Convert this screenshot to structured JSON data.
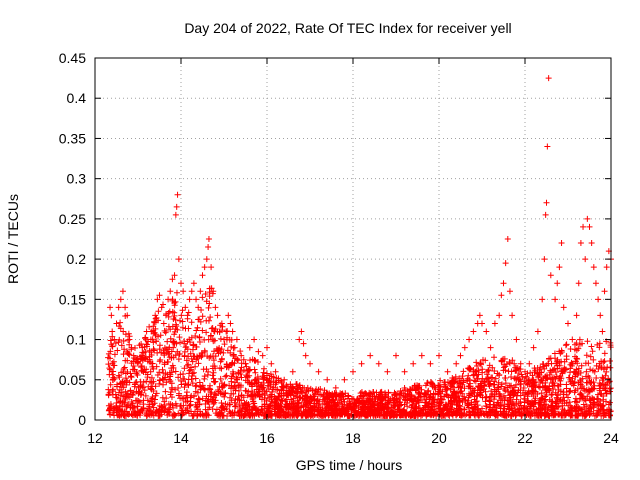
{
  "chart_data": {
    "type": "scatter",
    "title": "Day 204 of 2022, Rate Of TEC Index for receiver yell",
    "xlabel": "GPS time / hours",
    "ylabel": "ROTI / TECUs",
    "xlim": [
      12,
      24
    ],
    "ylim": [
      0,
      0.45
    ],
    "xticks": [
      12,
      14,
      16,
      18,
      20,
      22,
      24
    ],
    "yticks": [
      0,
      0.05,
      0.1,
      0.15,
      0.2,
      0.25,
      0.3,
      0.35,
      0.4,
      0.45
    ],
    "xtick_labels": [
      "12",
      "14",
      "16",
      "18",
      "20",
      "22",
      "24"
    ],
    "ytick_labels": [
      "0",
      "0.05",
      "0.1",
      "0.15",
      "0.2",
      "0.25",
      "0.3",
      "0.35",
      "0.4",
      "0.45"
    ],
    "grid": true,
    "marker": "+",
    "color": "#ff0000",
    "series": [
      {
        "name": "ROTI",
        "points": [
          [
            12.35,
            0.14
          ],
          [
            12.38,
            0.13
          ],
          [
            12.4,
            0.11
          ],
          [
            12.45,
            0.1
          ],
          [
            12.5,
            0.12
          ],
          [
            12.55,
            0.14
          ],
          [
            12.6,
            0.15
          ],
          [
            12.65,
            0.16
          ],
          [
            12.7,
            0.14
          ],
          [
            12.75,
            0.13
          ],
          [
            12.8,
            0.1
          ],
          [
            12.85,
            0.09
          ],
          [
            12.9,
            0.08
          ],
          [
            13.0,
            0.07
          ],
          [
            13.1,
            0.09
          ],
          [
            13.2,
            0.11
          ],
          [
            13.3,
            0.1
          ],
          [
            13.4,
            0.13
          ],
          [
            13.45,
            0.15
          ],
          [
            13.5,
            0.155
          ],
          [
            13.55,
            0.14
          ],
          [
            13.6,
            0.12
          ],
          [
            13.65,
            0.13
          ],
          [
            13.7,
            0.15
          ],
          [
            13.75,
            0.16
          ],
          [
            13.8,
            0.175
          ],
          [
            13.85,
            0.18
          ],
          [
            13.88,
            0.255
          ],
          [
            13.9,
            0.265
          ],
          [
            13.92,
            0.28
          ],
          [
            13.95,
            0.2
          ],
          [
            14.0,
            0.17
          ],
          [
            14.05,
            0.16
          ],
          [
            14.1,
            0.14
          ],
          [
            14.15,
            0.13
          ],
          [
            14.2,
            0.15
          ],
          [
            14.25,
            0.16
          ],
          [
            14.3,
            0.17
          ],
          [
            14.35,
            0.15
          ],
          [
            14.4,
            0.14
          ],
          [
            14.45,
            0.16
          ],
          [
            14.5,
            0.18
          ],
          [
            14.55,
            0.19
          ],
          [
            14.6,
            0.2
          ],
          [
            14.63,
            0.215
          ],
          [
            14.65,
            0.225
          ],
          [
            14.7,
            0.19
          ],
          [
            14.75,
            0.16
          ],
          [
            14.8,
            0.14
          ],
          [
            14.85,
            0.13
          ],
          [
            14.9,
            0.11
          ],
          [
            14.95,
            0.12
          ],
          [
            15.0,
            0.1
          ],
          [
            15.05,
            0.11
          ],
          [
            15.1,
            0.13
          ],
          [
            15.15,
            0.12
          ],
          [
            15.2,
            0.11
          ],
          [
            15.25,
            0.09
          ],
          [
            15.3,
            0.1
          ],
          [
            15.4,
            0.08
          ],
          [
            15.5,
            0.07
          ],
          [
            15.6,
            0.09
          ],
          [
            15.7,
            0.1
          ],
          [
            15.8,
            0.085
          ],
          [
            15.9,
            0.08
          ],
          [
            16.0,
            0.09
          ],
          [
            16.1,
            0.07
          ],
          [
            16.2,
            0.06
          ],
          [
            16.4,
            0.05
          ],
          [
            16.6,
            0.06
          ],
          [
            16.75,
            0.1
          ],
          [
            16.8,
            0.11
          ],
          [
            16.85,
            0.095
          ],
          [
            16.9,
            0.08
          ],
          [
            17.0,
            0.07
          ],
          [
            17.2,
            0.06
          ],
          [
            17.4,
            0.05
          ],
          [
            17.6,
            0.04
          ],
          [
            17.8,
            0.05
          ],
          [
            18.0,
            0.06
          ],
          [
            18.2,
            0.07
          ],
          [
            18.4,
            0.08
          ],
          [
            18.6,
            0.07
          ],
          [
            18.8,
            0.06
          ],
          [
            19.0,
            0.08
          ],
          [
            19.2,
            0.06
          ],
          [
            19.4,
            0.07
          ],
          [
            19.6,
            0.08
          ],
          [
            19.8,
            0.07
          ],
          [
            20.0,
            0.08
          ],
          [
            20.2,
            0.06
          ],
          [
            20.4,
            0.07
          ],
          [
            20.5,
            0.08
          ],
          [
            20.6,
            0.09
          ],
          [
            20.7,
            0.1
          ],
          [
            20.8,
            0.11
          ],
          [
            20.9,
            0.12
          ],
          [
            20.95,
            0.13
          ],
          [
            21.0,
            0.12
          ],
          [
            21.1,
            0.11
          ],
          [
            21.2,
            0.09
          ],
          [
            21.3,
            0.12
          ],
          [
            21.4,
            0.13
          ],
          [
            21.45,
            0.155
          ],
          [
            21.5,
            0.17
          ],
          [
            21.55,
            0.195
          ],
          [
            21.6,
            0.225
          ],
          [
            21.65,
            0.16
          ],
          [
            21.7,
            0.13
          ],
          [
            21.8,
            0.1
          ],
          [
            21.9,
            0.07
          ],
          [
            22.0,
            0.06
          ],
          [
            22.1,
            0.07
          ],
          [
            22.2,
            0.09
          ],
          [
            22.3,
            0.11
          ],
          [
            22.4,
            0.15
          ],
          [
            22.45,
            0.2
          ],
          [
            22.48,
            0.255
          ],
          [
            22.5,
            0.27
          ],
          [
            22.52,
            0.34
          ],
          [
            22.55,
            0.425
          ],
          [
            22.6,
            0.18
          ],
          [
            22.7,
            0.15
          ],
          [
            22.75,
            0.17
          ],
          [
            22.8,
            0.19
          ],
          [
            22.85,
            0.22
          ],
          [
            22.9,
            0.14
          ],
          [
            23.0,
            0.12
          ],
          [
            23.1,
            0.1
          ],
          [
            23.2,
            0.13
          ],
          [
            23.25,
            0.17
          ],
          [
            23.3,
            0.22
          ],
          [
            23.35,
            0.24
          ],
          [
            23.4,
            0.2
          ],
          [
            23.45,
            0.25
          ],
          [
            23.5,
            0.24
          ],
          [
            23.55,
            0.22
          ],
          [
            23.6,
            0.19
          ],
          [
            23.65,
            0.17
          ],
          [
            23.7,
            0.15
          ],
          [
            23.75,
            0.13
          ],
          [
            23.8,
            0.11
          ],
          [
            23.85,
            0.16
          ],
          [
            23.9,
            0.19
          ],
          [
            23.95,
            0.21
          ],
          [
            24.0,
            0.2
          ]
        ]
      }
    ],
    "upper_envelope": [
      [
        12.3,
        0.105
      ],
      [
        12.5,
        0.12
      ],
      [
        12.7,
        0.13
      ],
      [
        12.9,
        0.09
      ],
      [
        13.1,
        0.1
      ],
      [
        13.3,
        0.12
      ],
      [
        13.5,
        0.14
      ],
      [
        13.7,
        0.15
      ],
      [
        13.9,
        0.16
      ],
      [
        14.1,
        0.13
      ],
      [
        14.3,
        0.14
      ],
      [
        14.5,
        0.16
      ],
      [
        14.7,
        0.17
      ],
      [
        14.9,
        0.12
      ],
      [
        15.1,
        0.11
      ],
      [
        15.3,
        0.09
      ],
      [
        15.5,
        0.08
      ],
      [
        15.7,
        0.075
      ],
      [
        15.9,
        0.07
      ],
      [
        16.1,
        0.06
      ],
      [
        16.3,
        0.05
      ],
      [
        16.5,
        0.045
      ],
      [
        16.7,
        0.045
      ],
      [
        16.9,
        0.04
      ],
      [
        17.2,
        0.04
      ],
      [
        17.6,
        0.035
      ],
      [
        18.0,
        0.035
      ],
      [
        18.4,
        0.035
      ],
      [
        18.8,
        0.035
      ],
      [
        19.2,
        0.04
      ],
      [
        19.6,
        0.045
      ],
      [
        20.0,
        0.05
      ],
      [
        20.4,
        0.055
      ],
      [
        20.8,
        0.07
      ],
      [
        21.2,
        0.08
      ],
      [
        21.6,
        0.08
      ],
      [
        22.0,
        0.06
      ],
      [
        22.4,
        0.07
      ],
      [
        22.8,
        0.09
      ],
      [
        23.2,
        0.1
      ],
      [
        23.6,
        0.1
      ],
      [
        24.0,
        0.1
      ]
    ],
    "lower_bound": 0.005,
    "total_markers": 3400
  }
}
